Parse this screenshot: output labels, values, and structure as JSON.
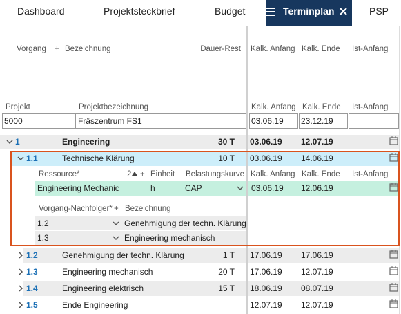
{
  "tabs": [
    "Dashboard",
    "Projektsteckbrief",
    "Budget",
    "Terminplan",
    "PSP"
  ],
  "columns": {
    "vorgang": "Vorgang",
    "add": "+",
    "bezeichnung": "Bezeichnung",
    "dauer_rest": "Dauer-Rest",
    "kalk_anfang": "Kalk. Anfang",
    "kalk_ende": "Kalk. Ende",
    "ist_anfang": "Ist-Anfang"
  },
  "project": {
    "headers": {
      "projekt": "Projekt",
      "bezeichnung": "Projektbezeichnung",
      "kalk_anfang": "Kalk. Anfang",
      "kalk_ende": "Kalk. Ende",
      "ist_anfang": "Ist-Anfang"
    },
    "projekt": "5000",
    "bezeichnung": "Fräszentrum FS1",
    "kalk_anfang": "03.06.19",
    "kalk_ende": "23.12.19"
  },
  "tasks": [
    {
      "id": "1",
      "name": "Engineering",
      "dauer": "30 T",
      "anfang": "03.06.19",
      "ende": "12.07.19"
    },
    {
      "id": "1.1",
      "name": "Technische Klärung",
      "dauer": "10 T",
      "anfang": "03.06.19",
      "ende": "14.06.19"
    },
    {
      "id": "1.2",
      "name": "Genehmigung der techn. Klärung",
      "dauer": "1 T",
      "anfang": "17.06.19",
      "ende": "17.06.19"
    },
    {
      "id": "1.3",
      "name": "Engineering mechanisch",
      "dauer": "20 T",
      "anfang": "17.06.19",
      "ende": "12.07.19"
    },
    {
      "id": "1.4",
      "name": "Engineering elektrisch",
      "dauer": "15 T",
      "anfang": "18.06.19",
      "ende": "08.07.19"
    },
    {
      "id": "1.5",
      "name": "Ende Engineering",
      "anfang": "12.07.19",
      "ende": "12.07.19"
    }
  ],
  "resources": {
    "headers": {
      "ressource": "Ressource*",
      "sort": "2",
      "add": "+",
      "einheit": "Einheit",
      "kurve": "Belastungskurve",
      "kalk_anfang": "Kalk. Anfang",
      "kalk_ende": "Kalk. Ende",
      "ist_anfang": "Ist-Anfang"
    },
    "rows": [
      {
        "name": "Engineering Mechanic",
        "einheit": "h",
        "kurve": "CAP",
        "anfang": "03.06.19",
        "ende": "12.06.19"
      }
    ]
  },
  "successors": {
    "headers": {
      "vorgang": "Vorgang-Nachfolger*",
      "add": "+",
      "bezeichnung": "Bezeichnung"
    },
    "rows": [
      {
        "id": "1.2",
        "name": "Genehmigung der techn. Klärung"
      },
      {
        "id": "1.3",
        "name": "Engineering mechanisch"
      }
    ]
  }
}
